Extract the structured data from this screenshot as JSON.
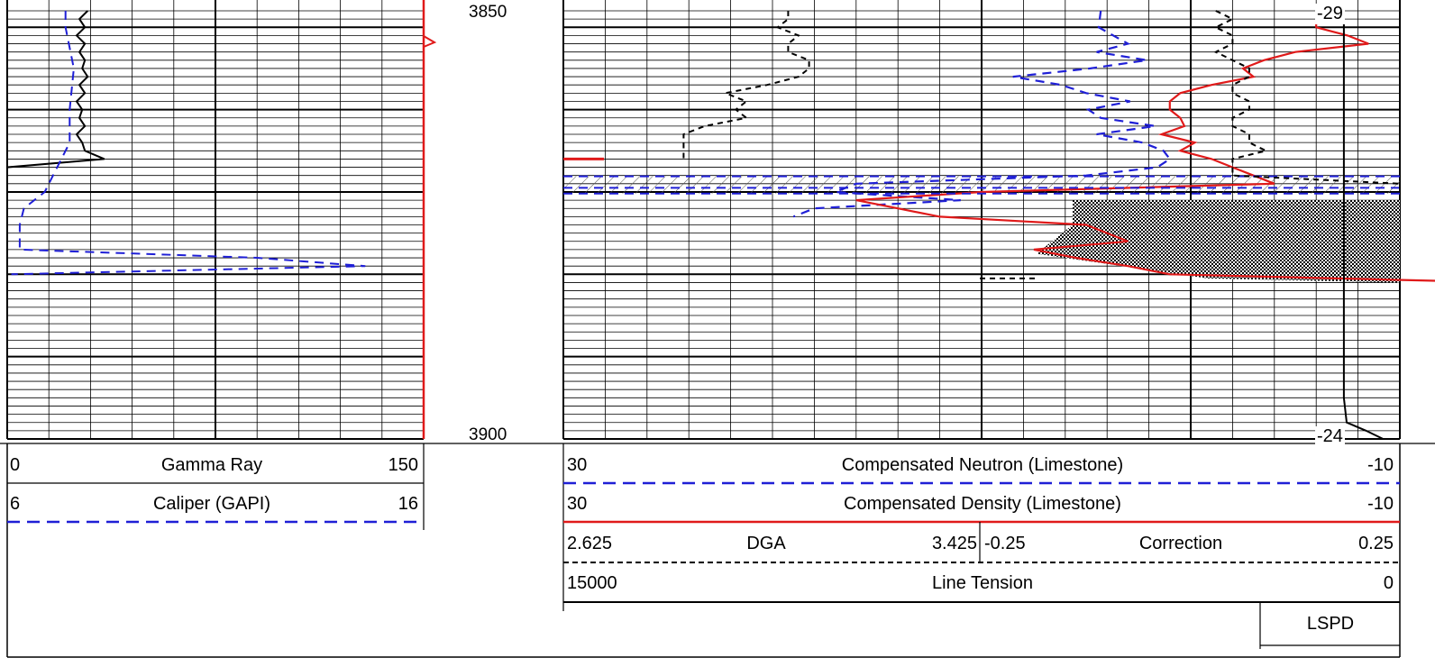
{
  "colors": {
    "gamma_ray": "#000000",
    "caliper": "#1f1fd6",
    "neutron": "#1f1fd6",
    "density": "#e01a1a",
    "dga": "#000000",
    "correction": "#000000",
    "line_tension": "#000000",
    "depth_marker": "#e01a1a"
  },
  "depth_labels": [
    "3850",
    "3900"
  ],
  "tension_labels": [
    "-29",
    "-24"
  ],
  "headers": {
    "gamma_ray": {
      "min": "0",
      "label": "Gamma Ray",
      "max": "150"
    },
    "caliper": {
      "min": "6",
      "label": "Caliper (GAPI)",
      "max": "16"
    },
    "neutron": {
      "min": "30",
      "label": "Compensated Neutron (Limestone)",
      "max": "-10"
    },
    "density": {
      "min": "30",
      "label": "Compensated Density (Limestone)",
      "max": "-10"
    },
    "dga": {
      "min": "2.625",
      "label": "DGA",
      "max": "3.425"
    },
    "correction": {
      "min": "-0.25",
      "label": "Correction",
      "max": "0.25"
    },
    "line_tension": {
      "min": "15000",
      "label": "Line Tension",
      "max": "0"
    },
    "lspd": {
      "label": "LSPD"
    }
  },
  "chart_data": {
    "type": "line",
    "depth_range": [
      3848,
      3900
    ],
    "tracks": [
      {
        "name": "Gamma Ray",
        "series": [
          {
            "name": "Gamma Ray",
            "range": [
              0,
              150
            ],
            "style": "solid",
            "depth": [
              3848,
              3849,
              3850,
              3851,
              3852,
              3853,
              3854,
              3855,
              3856,
              3857,
              3858,
              3859,
              3860,
              3861,
              3862,
              3863,
              3864,
              3865,
              3866,
              3867,
              3868
            ],
            "values": [
              29,
              26,
              28,
              25,
              28,
              26,
              28,
              27,
              29,
              26,
              28,
              25,
              27,
              26,
              28,
              25,
              27,
              28,
              35,
              0,
              0
            ]
          },
          {
            "name": "Caliper (GAPI)",
            "range": [
              6,
              16
            ],
            "style": "dashed",
            "depth": [
              3848,
              3850,
              3855,
              3860,
              3864,
              3866,
              3868,
              3870,
              3872,
              3874,
              3876,
              3877,
              3878,
              3879,
              3880
            ],
            "values": [
              7.4,
              7.4,
              7.6,
              7.5,
              7.5,
              7.3,
              7.1,
              6.9,
              6.4,
              6.3,
              6.3,
              6.3,
              12.0,
              14.6,
              6.1
            ]
          }
        ]
      },
      {
        "name": "Porosity",
        "series": [
          {
            "name": "Compensated Neutron (Limestone)",
            "range": [
              30,
              -10
            ],
            "style": "dashed",
            "depth": [
              3848,
              3850,
              3852,
              3853,
              3854,
              3855,
              3856,
              3857,
              3858,
              3859,
              3860,
              3861,
              3862,
              3863,
              3864,
              3865,
              3866,
              3867,
              3868,
              3869,
              3870,
              3871,
              3872,
              3873
            ],
            "values": [
              4.3,
              4.4,
              3.0,
              4.5,
              2.1,
              4.8,
              8.5,
              6.2,
              5.0,
              2.9,
              4.9,
              4.3,
              1.7,
              4.5,
              2.3,
              1.3,
              1.0,
              1.6,
              5.0,
              16.0,
              17.0,
              11.0,
              18.0,
              19.0
            ]
          },
          {
            "name": "Compensated Density (Limestone)",
            "range": [
              30,
              -10
            ],
            "style": "solid",
            "depth": [
              3848,
              3849,
              3850,
              3851,
              3852,
              3853,
              3854,
              3855,
              3856,
              3857,
              3858,
              3859,
              3860,
              3861,
              3862,
              3863,
              3864,
              3865,
              3866,
              3867,
              3868,
              3869,
              3870,
              3871,
              3872,
              3873,
              3874,
              3875,
              3876,
              3877,
              3878,
              3879,
              3880,
              3881
            ],
            "values": [
              -7.0,
              -6.0,
              -6.0,
              -7.5,
              -8.5,
              -5.0,
              -3.5,
              -2.5,
              -3.0,
              -1.0,
              0.5,
              1.0,
              1.0,
              0.5,
              0.3,
              1.4,
              -0.2,
              0.5,
              -1.0,
              -2.0,
              -3.0,
              -4.0,
              10.0,
              16.0,
              14.0,
              12.0,
              5.0,
              4.0,
              3.0,
              7.5,
              5.5,
              3.0,
              1.0,
              -15.0
            ]
          }
        ]
      },
      {
        "name": "Line Tension",
        "series": [
          {
            "name": "Line Tension",
            "range": [
              15000,
              0
            ],
            "style": "solid",
            "depth": [
              3848,
              3855,
              3860,
              3865,
              3870,
              3875,
              3880,
              3885,
              3890,
              3895,
              3898,
              3899,
              3900
            ],
            "values": [
              2000,
              2000,
              2000,
              2000,
              2000,
              2000,
              2000,
              2000,
              2000,
              2000,
              1900,
              1200,
              600
            ]
          }
        ]
      },
      {
        "name": "DGA",
        "series": [
          {
            "name": "DGA",
            "range": [
              2.625,
              3.425
            ],
            "style": "dashed",
            "depth": [
              3848,
              3849,
              3850,
              3851,
              3852,
              3853,
              3854,
              3855,
              3856,
              3857,
              3858,
              3859,
              3860,
              3861,
              3862,
              3863,
              3864,
              3865,
              3866
            ],
            "values": [
              2.84,
              2.84,
              2.83,
              2.85,
              2.84,
              2.84,
              2.86,
              2.86,
              2.85,
              2.82,
              2.78,
              2.8,
              2.79,
              2.8,
              2.76,
              2.74,
              2.74,
              2.74,
              2.74
            ]
          }
        ]
      },
      {
        "name": "Correction",
        "series": [
          {
            "name": "Correction",
            "range": [
              -0.25,
              0.25
            ],
            "style": "dashed",
            "depth": [
              3848,
              3849,
              3850,
              3851,
              3852,
              3853,
              3854,
              3855,
              3856,
              3857,
              3858,
              3859,
              3860,
              3861,
              3862,
              3863,
              3864,
              3865,
              3866,
              3867,
              3868,
              3869,
              3870
            ],
            "values": [
              0.14,
              0.15,
              0.14,
              0.15,
              0.15,
              0.14,
              0.15,
              0.16,
              0.16,
              0.15,
              0.15,
              0.16,
              0.16,
              0.15,
              0.15,
              0.16,
              0.16,
              0.17,
              0.15,
              0.15,
              0.15,
              0.25,
              0.25
            ]
          }
        ]
      }
    ]
  }
}
